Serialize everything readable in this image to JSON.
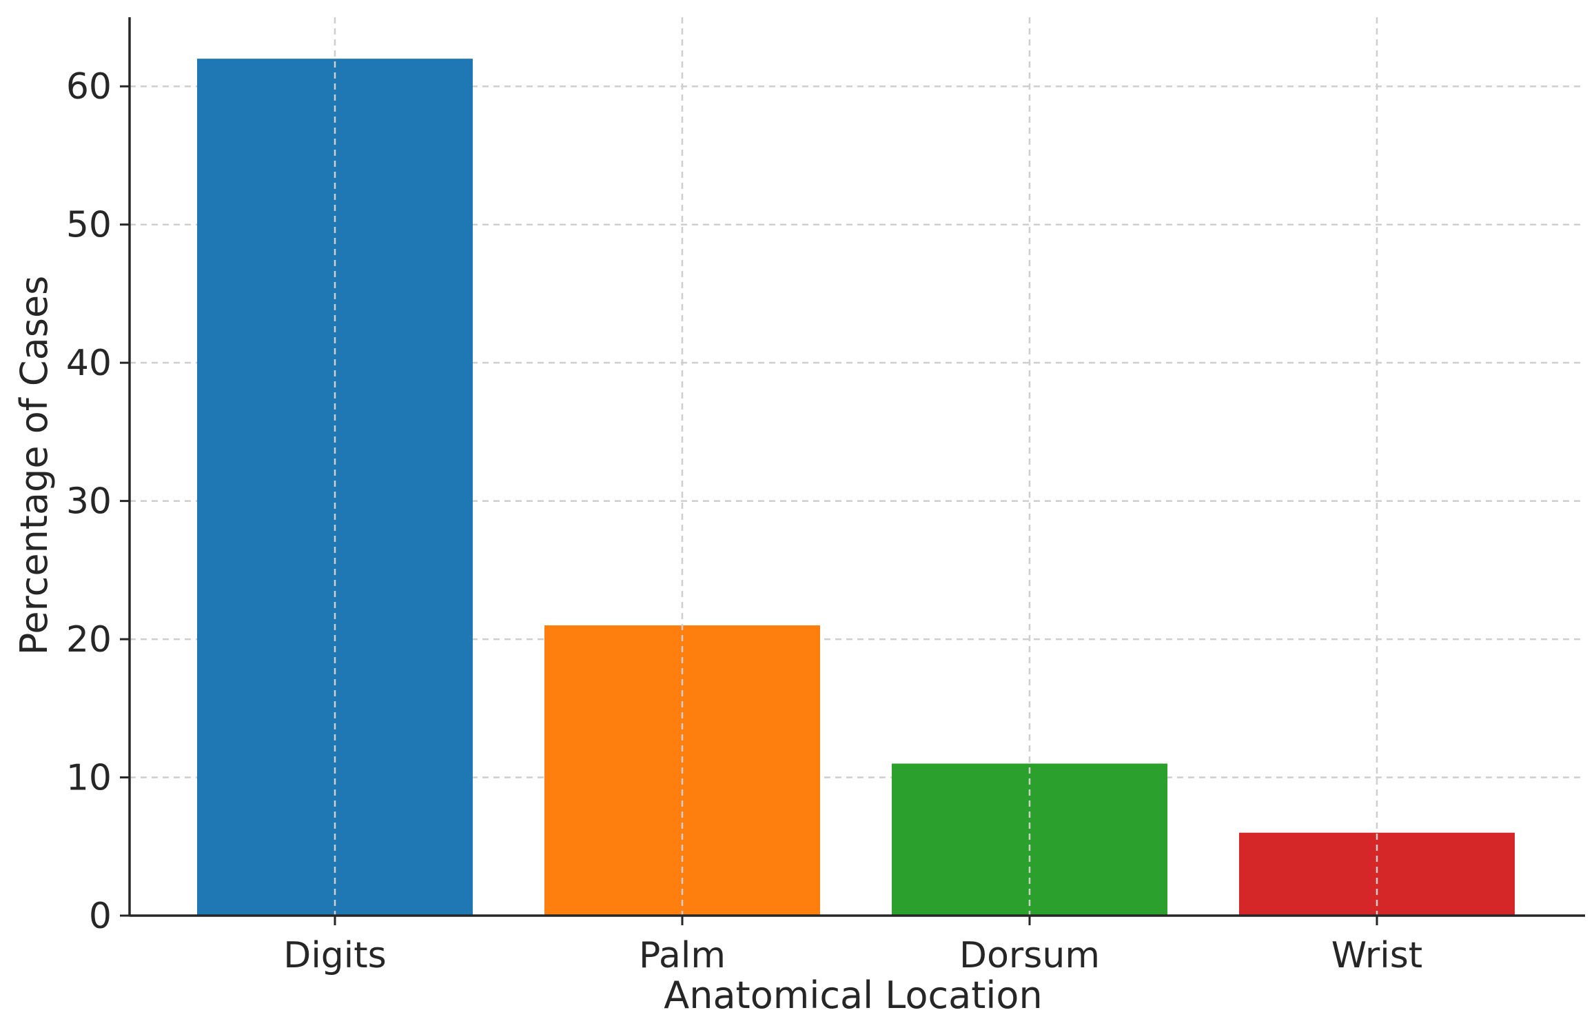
{
  "chart_data": {
    "type": "bar",
    "title": "",
    "xlabel": "Anatomical Location",
    "ylabel": "Percentage of Cases",
    "categories": [
      "Digits",
      "Palm",
      "Dorsum",
      "Wrist"
    ],
    "values": [
      62,
      21,
      11,
      6
    ],
    "colors": [
      "#1f77b4",
      "#ff7f0e",
      "#2ca02c",
      "#d62728"
    ],
    "ylim": [
      0,
      65
    ],
    "yticks": [
      0,
      10,
      20,
      30,
      40,
      50,
      60
    ],
    "grid": true,
    "grid_style": "dashed",
    "legend": "none"
  }
}
